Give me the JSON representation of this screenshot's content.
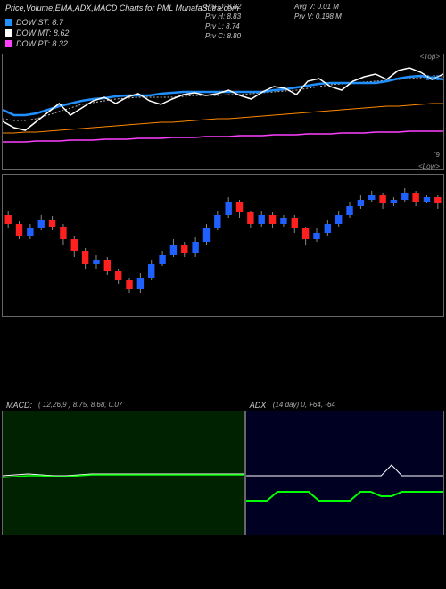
{
  "title": "Price,Volume,EMA,ADX,MACD Charts for PML MunafaSutra.com",
  "legend": [
    {
      "swatch": "#2090ff",
      "label": "DOW ST: 8.7"
    },
    {
      "swatch": "#ffffff",
      "label": "DOW MT: 8.62"
    },
    {
      "swatch": "#ff40ff",
      "label": "DOW PT: 8.32"
    }
  ],
  "info_col1": [
    "Prv   O: 8.82",
    "Prv   H: 8.83",
    "Prv   L: 8.74",
    "Prv   C: 8.80"
  ],
  "info_col2": [
    "Avg V: 0.01 M",
    "Prv   V: 0.198 M"
  ],
  "price_panel": {
    "top_label": "<Top>",
    "low_label": "<Low>",
    "right_val": "9.08",
    "right_mark": "'9",
    "lines": {
      "blue": {
        "color": "#2090ff",
        "width": 2.5,
        "pts": [
          62,
          68,
          68,
          66,
          62,
          58,
          55,
          52,
          50,
          49,
          47,
          46,
          46,
          46,
          44,
          43,
          42,
          42,
          42,
          42,
          42,
          42,
          42,
          42,
          40,
          39,
          37,
          35,
          33,
          32,
          32,
          32,
          32,
          32,
          30,
          27,
          25,
          24,
          26,
          28
        ]
      },
      "white1": {
        "color": "#ffffff",
        "width": 1.5,
        "pts": [
          75,
          82,
          85,
          75,
          65,
          55,
          68,
          60,
          52,
          48,
          55,
          48,
          44,
          52,
          56,
          50,
          45,
          43,
          46,
          44,
          40,
          46,
          50,
          42,
          36,
          38,
          45,
          30,
          27,
          36,
          40,
          30,
          25,
          22,
          28,
          18,
          15,
          20,
          28,
          22
        ]
      },
      "gray": {
        "color": "#bbbbbb",
        "width": 1,
        "dash": true,
        "pts": [
          72,
          74,
          74,
          72,
          68,
          64,
          60,
          56,
          54,
          52,
          50,
          49,
          48,
          48,
          48,
          48,
          47,
          46,
          46,
          46,
          45,
          45,
          44,
          43,
          42,
          41,
          40,
          38,
          36,
          34,
          33,
          32,
          31,
          30,
          29,
          28,
          27,
          26,
          25,
          25
        ]
      },
      "orange": {
        "color": "#ff8800",
        "width": 1,
        "pts": [
          88,
          88,
          87,
          87,
          86,
          85,
          84,
          83,
          82,
          81,
          80,
          79,
          78,
          77,
          76,
          76,
          75,
          74,
          73,
          72,
          72,
          71,
          70,
          69,
          68,
          67,
          66,
          65,
          64,
          63,
          62,
          61,
          60,
          59,
          58,
          58,
          57,
          56,
          55,
          55
        ]
      },
      "pink": {
        "color": "#ff40ff",
        "width": 1.5,
        "pts": [
          98,
          98,
          98,
          97,
          97,
          97,
          96,
          96,
          96,
          95,
          95,
          95,
          94,
          94,
          94,
          93,
          93,
          93,
          92,
          92,
          92,
          91,
          91,
          91,
          90,
          90,
          90,
          89,
          89,
          89,
          88,
          88,
          88,
          87,
          87,
          87,
          86,
          86,
          86,
          86
        ]
      }
    }
  },
  "candles": {
    "up_color": "#2060ff",
    "down_color": "#ff2020",
    "wick_color": "#888888",
    "data": [
      {
        "o": 45,
        "c": 55,
        "h": 40,
        "l": 60
      },
      {
        "o": 55,
        "c": 68,
        "h": 52,
        "l": 72
      },
      {
        "o": 68,
        "c": 60,
        "h": 55,
        "l": 72
      },
      {
        "o": 60,
        "c": 50,
        "h": 45,
        "l": 62
      },
      {
        "o": 50,
        "c": 58,
        "h": 46,
        "l": 62
      },
      {
        "o": 58,
        "c": 72,
        "h": 55,
        "l": 78
      },
      {
        "o": 72,
        "c": 85,
        "h": 68,
        "l": 92
      },
      {
        "o": 85,
        "c": 100,
        "h": 82,
        "l": 105
      },
      {
        "o": 100,
        "c": 95,
        "h": 90,
        "l": 105
      },
      {
        "o": 95,
        "c": 108,
        "h": 92,
        "l": 112
      },
      {
        "o": 108,
        "c": 118,
        "h": 105,
        "l": 122
      },
      {
        "o": 118,
        "c": 128,
        "h": 115,
        "l": 132
      },
      {
        "o": 128,
        "c": 115,
        "h": 110,
        "l": 132
      },
      {
        "o": 115,
        "c": 100,
        "h": 95,
        "l": 118
      },
      {
        "o": 100,
        "c": 90,
        "h": 85,
        "l": 102
      },
      {
        "o": 90,
        "c": 78,
        "h": 72,
        "l": 92
      },
      {
        "o": 78,
        "c": 88,
        "h": 75,
        "l": 92
      },
      {
        "o": 88,
        "c": 75,
        "h": 70,
        "l": 92
      },
      {
        "o": 75,
        "c": 60,
        "h": 55,
        "l": 78
      },
      {
        "o": 60,
        "c": 45,
        "h": 40,
        "l": 62
      },
      {
        "o": 45,
        "c": 30,
        "h": 25,
        "l": 48
      },
      {
        "o": 30,
        "c": 42,
        "h": 28,
        "l": 48
      },
      {
        "o": 42,
        "c": 55,
        "h": 40,
        "l": 60
      },
      {
        "o": 55,
        "c": 45,
        "h": 40,
        "l": 58
      },
      {
        "o": 45,
        "c": 55,
        "h": 42,
        "l": 60
      },
      {
        "o": 55,
        "c": 48,
        "h": 45,
        "l": 58
      },
      {
        "o": 48,
        "c": 60,
        "h": 45,
        "l": 65
      },
      {
        "o": 60,
        "c": 72,
        "h": 58,
        "l": 78
      },
      {
        "o": 72,
        "c": 65,
        "h": 60,
        "l": 75
      },
      {
        "o": 65,
        "c": 55,
        "h": 50,
        "l": 68
      },
      {
        "o": 55,
        "c": 45,
        "h": 40,
        "l": 58
      },
      {
        "o": 45,
        "c": 35,
        "h": 30,
        "l": 48
      },
      {
        "o": 35,
        "c": 28,
        "h": 22,
        "l": 38
      },
      {
        "o": 28,
        "c": 22,
        "h": 18,
        "l": 30
      },
      {
        "o": 22,
        "c": 32,
        "h": 20,
        "l": 38
      },
      {
        "o": 32,
        "c": 28,
        "h": 25,
        "l": 35
      },
      {
        "o": 28,
        "c": 20,
        "h": 15,
        "l": 30
      },
      {
        "o": 20,
        "c": 30,
        "h": 18,
        "l": 35
      },
      {
        "o": 30,
        "c": 25,
        "h": 22,
        "l": 32
      },
      {
        "o": 25,
        "c": 32,
        "h": 22,
        "l": 38
      }
    ]
  },
  "macd": {
    "title": "MACD:",
    "params": "( 12,26,9 ) 8.75,  8.68,  0.07",
    "bg": "#003300",
    "line1": {
      "color": "#ffffff",
      "pts": [
        72,
        71,
        70,
        71,
        72,
        72,
        71,
        70,
        70,
        70,
        70,
        70,
        70,
        70,
        70,
        70,
        70,
        70,
        70,
        70
      ]
    },
    "line2": {
      "color": "#00ff00",
      "pts": [
        74,
        73,
        72,
        72,
        73,
        73,
        72,
        71,
        71,
        71,
        71,
        71,
        71,
        71,
        71,
        71,
        71,
        71,
        71,
        71
      ]
    }
  },
  "adx": {
    "title": "ADX",
    "params": "(14   day) 0,  +64,  -64",
    "bg": "#000033",
    "line1": {
      "color": "#ffffff",
      "pts": [
        72,
        72,
        72,
        72,
        72,
        72,
        72,
        72,
        72,
        72,
        72,
        72,
        72,
        72,
        60,
        72,
        72,
        72,
        72,
        72
      ]
    },
    "line2": {
      "color": "#00ff00",
      "pts": [
        100,
        100,
        100,
        90,
        90,
        90,
        90,
        100,
        100,
        100,
        100,
        90,
        90,
        95,
        95,
        90,
        90,
        90,
        90,
        90
      ]
    }
  }
}
